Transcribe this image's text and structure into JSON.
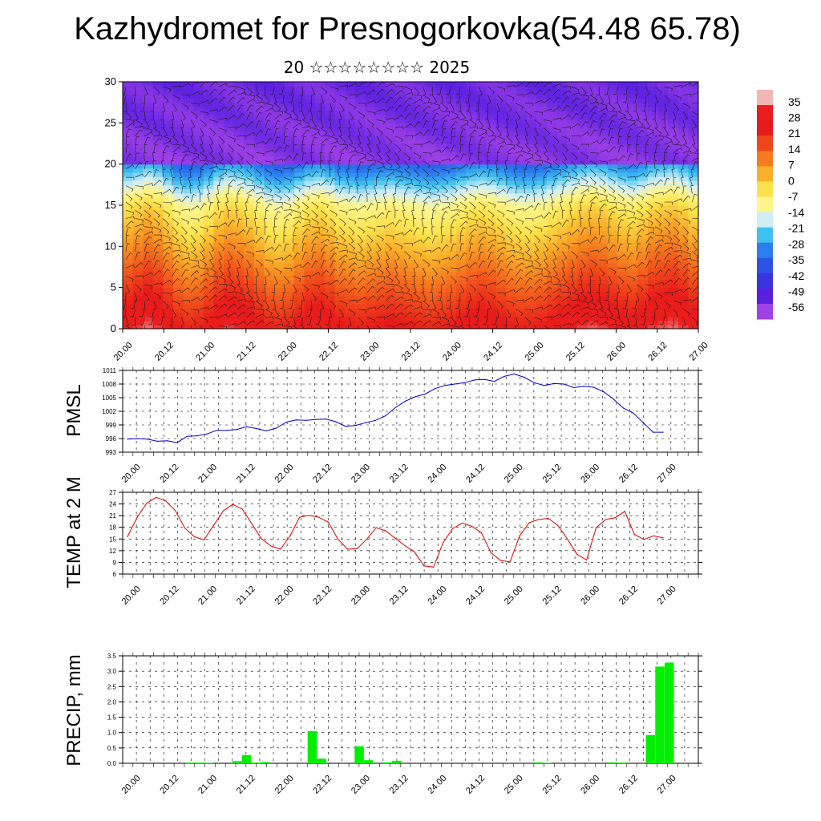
{
  "title": "Kazhydromet for Presnogorkovka(54.48 65.78)",
  "subtitle": "20 ☆☆☆☆☆☆☆☆ 2025",
  "time_labels": [
    "20.00",
    "20.12",
    "21.00",
    "21.12",
    "22.00",
    "22.12",
    "23.00",
    "23.12",
    "24.00",
    "24.12",
    "25.00",
    "25.12",
    "26.00",
    "26.12",
    "27.00"
  ],
  "chart_data": [
    {
      "type": "heatmap",
      "title": "",
      "xlabel": "",
      "ylabel": "",
      "ylim": [
        0,
        30
      ],
      "yticks": [
        0,
        5,
        10,
        15,
        20,
        25,
        30
      ],
      "overlay": "wind barbs",
      "colorbar": {
        "labels": [
          "35",
          "28",
          "21",
          "14",
          "7",
          "0",
          "-7",
          "-14",
          "-21",
          "-28",
          "-35",
          "-42",
          "-49",
          "-56"
        ],
        "colors": [
          "#f2b6b6",
          "#ec1c1c",
          "#e81b1b",
          "#f0461a",
          "#f67a1e",
          "#fbb02a",
          "#fde24c",
          "#fff58c",
          "#cfeef8",
          "#3fc0f0",
          "#2a7ef0",
          "#2e52e6",
          "#3a34e0",
          "#5a20e0",
          "#a040e8"
        ]
      },
      "surface_temperature_series": [
        28,
        30,
        32,
        30,
        26,
        22,
        20,
        21,
        24,
        28,
        30,
        29,
        27,
        24,
        21,
        20,
        21,
        24,
        27,
        28,
        26,
        23,
        22,
        21,
        22,
        23,
        24,
        23,
        22,
        21,
        20,
        21,
        22,
        24,
        26,
        27,
        26,
        24,
        22,
        21,
        21,
        22,
        24,
        26,
        28,
        30,
        31,
        30,
        28,
        26,
        25,
        27,
        30,
        31,
        32,
        30,
        27
      ]
    },
    {
      "type": "line",
      "title": "",
      "xlabel": "",
      "ylabel": "PMSL",
      "ylim": [
        993,
        1011
      ],
      "yticks": [
        "993",
        "996",
        "999",
        "1002",
        "1005",
        "1008",
        "1011"
      ],
      "color": "#0000cc",
      "values": [
        995.9,
        996.0,
        995.9,
        995.4,
        995.5,
        995.1,
        996.5,
        996.6,
        997.0,
        997.8,
        997.8,
        998.0,
        998.6,
        998.2,
        997.7,
        998.3,
        999.6,
        1000.1,
        1000.0,
        1000.2,
        1000.3,
        999.7,
        998.7,
        998.9,
        999.5,
        1000.0,
        1001.0,
        1002.8,
        1004.2,
        1005.2,
        1005.8,
        1007.0,
        1007.7,
        1008.0,
        1008.3,
        1008.9,
        1009.0,
        1008.6,
        1009.7,
        1010.2,
        1009.5,
        1008.3,
        1007.7,
        1008.1,
        1008.0,
        1007.2,
        1007.5,
        1007.3,
        1006.3,
        1004.7,
        1002.7,
        1001.6,
        999.5,
        997.4,
        997.4
      ]
    },
    {
      "type": "line",
      "title": "",
      "xlabel": "",
      "ylabel": "TEMP at 2 M",
      "ylim": [
        6,
        27
      ],
      "yticks": [
        "6",
        "9",
        "12",
        "15",
        "18",
        "21",
        "24",
        "27"
      ],
      "color": "#e00000",
      "values": [
        15.6,
        20.5,
        24.2,
        25.7,
        24.8,
        22.3,
        17.8,
        15.6,
        14.8,
        18.5,
        22.2,
        23.9,
        22.7,
        18.9,
        15.1,
        13.2,
        12.4,
        15.8,
        20.6,
        21.1,
        20.6,
        19.3,
        15.0,
        12.4,
        12.5,
        14.9,
        17.9,
        17.1,
        15.2,
        13.3,
        11.7,
        8.1,
        7.8,
        14.0,
        17.7,
        19.1,
        18.3,
        16.6,
        11.5,
        9.5,
        9.1,
        15.8,
        19.2,
        20.0,
        20.3,
        18.5,
        15.0,
        11.1,
        9.6,
        17.9,
        20.0,
        20.5,
        22.1,
        16.2,
        14.9,
        15.8,
        15.3
      ]
    },
    {
      "type": "bar",
      "title": "",
      "xlabel": "",
      "ylabel": "PRECIP, mm",
      "ylim": [
        0,
        3.5
      ],
      "yticks": [
        "0.0",
        "0.5",
        "1.0",
        "1.5",
        "2.0",
        "2.5",
        "3.0",
        "3.5"
      ],
      "color": "#00ee00",
      "values": [
        0,
        0,
        0,
        0,
        0,
        0,
        0.02,
        0.02,
        0.01,
        0,
        0,
        0.07,
        0.27,
        0.02,
        0.04,
        0,
        0,
        0,
        0,
        1.05,
        0.15,
        0,
        0,
        0,
        0.55,
        0.1,
        0,
        0.03,
        0.08,
        0,
        0,
        0,
        0,
        0,
        0,
        0,
        0,
        0,
        0,
        0,
        0,
        0,
        0,
        0.03,
        0.01,
        0,
        0,
        0,
        0,
        0,
        0,
        0.03,
        0.02,
        0,
        0,
        0.92,
        3.15,
        3.28
      ]
    }
  ]
}
